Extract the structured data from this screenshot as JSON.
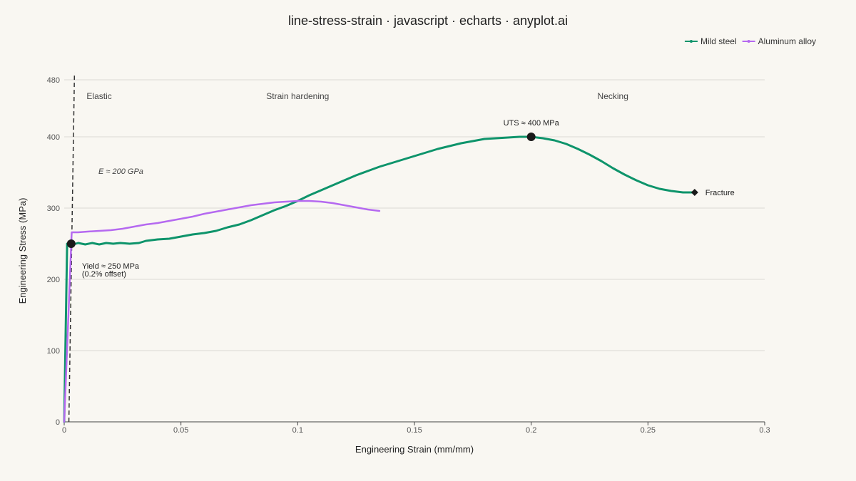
{
  "chart_data": {
    "type": "line",
    "title": "line-stress-strain · javascript · echarts · anyplot.ai",
    "xlabel": "Engineering Strain (mm/mm)",
    "ylabel": "Engineering Stress (MPa)",
    "xlim": [
      0,
      0.3
    ],
    "ylim": [
      0,
      480
    ],
    "xticks": [
      0,
      0.05,
      0.1,
      0.15,
      0.2,
      0.25,
      0.3
    ],
    "xtick_labels": [
      "0",
      "0.05",
      "0.1",
      "0.15",
      "0.2",
      "0.25",
      "0.3"
    ],
    "yticks": [
      0,
      100,
      200,
      300,
      400,
      480
    ],
    "ytick_labels": [
      "0",
      "100",
      "200",
      "300",
      "400",
      "480"
    ],
    "grid": "horizontal",
    "legend_position": "top-right",
    "series": [
      {
        "name": "Mild steel",
        "color": "#0e946b",
        "points": [
          [
            0,
            0
          ],
          [
            0.00125,
            250
          ],
          [
            0.004,
            249
          ],
          [
            0.006,
            251
          ],
          [
            0.009,
            249
          ],
          [
            0.012,
            251
          ],
          [
            0.015,
            249
          ],
          [
            0.018,
            251
          ],
          [
            0.021,
            250
          ],
          [
            0.024,
            251
          ],
          [
            0.028,
            250
          ],
          [
            0.032,
            251
          ],
          [
            0.035,
            254
          ],
          [
            0.04,
            256
          ],
          [
            0.045,
            257
          ],
          [
            0.05,
            260
          ],
          [
            0.055,
            263
          ],
          [
            0.06,
            265
          ],
          [
            0.065,
            268
          ],
          [
            0.07,
            273
          ],
          [
            0.075,
            277
          ],
          [
            0.08,
            283
          ],
          [
            0.085,
            290
          ],
          [
            0.09,
            297
          ],
          [
            0.095,
            303
          ],
          [
            0.1,
            310
          ],
          [
            0.105,
            318
          ],
          [
            0.11,
            325
          ],
          [
            0.115,
            332
          ],
          [
            0.12,
            339
          ],
          [
            0.125,
            346
          ],
          [
            0.13,
            352
          ],
          [
            0.135,
            358
          ],
          [
            0.14,
            363
          ],
          [
            0.145,
            368
          ],
          [
            0.15,
            373
          ],
          [
            0.155,
            378
          ],
          [
            0.16,
            383
          ],
          [
            0.165,
            387
          ],
          [
            0.17,
            391
          ],
          [
            0.175,
            394
          ],
          [
            0.18,
            397
          ],
          [
            0.185,
            398
          ],
          [
            0.19,
            399
          ],
          [
            0.195,
            400
          ],
          [
            0.2,
            400
          ],
          [
            0.205,
            398
          ],
          [
            0.21,
            395
          ],
          [
            0.215,
            390
          ],
          [
            0.22,
            383
          ],
          [
            0.225,
            375
          ],
          [
            0.23,
            366
          ],
          [
            0.235,
            356
          ],
          [
            0.24,
            347
          ],
          [
            0.245,
            339
          ],
          [
            0.25,
            332
          ],
          [
            0.255,
            327
          ],
          [
            0.26,
            324
          ],
          [
            0.265,
            322
          ],
          [
            0.27,
            322
          ]
        ]
      },
      {
        "name": "Aluminum alloy",
        "color": "#b569f0",
        "points": [
          [
            0,
            0
          ],
          [
            0.0032,
            266
          ],
          [
            0.006,
            266
          ],
          [
            0.01,
            267
          ],
          [
            0.015,
            268
          ],
          [
            0.02,
            269
          ],
          [
            0.025,
            271
          ],
          [
            0.03,
            274
          ],
          [
            0.035,
            277
          ],
          [
            0.04,
            279
          ],
          [
            0.045,
            282
          ],
          [
            0.05,
            285
          ],
          [
            0.055,
            288
          ],
          [
            0.06,
            292
          ],
          [
            0.065,
            295
          ],
          [
            0.07,
            298
          ],
          [
            0.075,
            301
          ],
          [
            0.08,
            304
          ],
          [
            0.085,
            306
          ],
          [
            0.09,
            308
          ],
          [
            0.095,
            309
          ],
          [
            0.1,
            310
          ],
          [
            0.105,
            310
          ],
          [
            0.11,
            309
          ],
          [
            0.115,
            307
          ],
          [
            0.12,
            304
          ],
          [
            0.125,
            301
          ],
          [
            0.13,
            298
          ],
          [
            0.135,
            296
          ]
        ]
      }
    ],
    "markers": [
      {
        "type": "circle",
        "x": 0.003,
        "y": 250,
        "label": [
          "Yield ≈ 250 MPa",
          "(0.2% offset)"
        ]
      },
      {
        "type": "circle",
        "x": 0.2,
        "y": 400,
        "label": [
          "UTS ≈ 400 MPa"
        ]
      },
      {
        "type": "diamond",
        "x": 0.27,
        "y": 322,
        "label": [
          "Fracture"
        ]
      }
    ],
    "offset_line": {
      "x_start": 0.002,
      "slope_mpa": 200000,
      "label": "E ≈ 200 GPa"
    },
    "regions": [
      {
        "label": "Elastic",
        "x": 0.015
      },
      {
        "label": "Strain hardening",
        "x": 0.1
      },
      {
        "label": "Necking",
        "x": 0.235
      }
    ]
  }
}
